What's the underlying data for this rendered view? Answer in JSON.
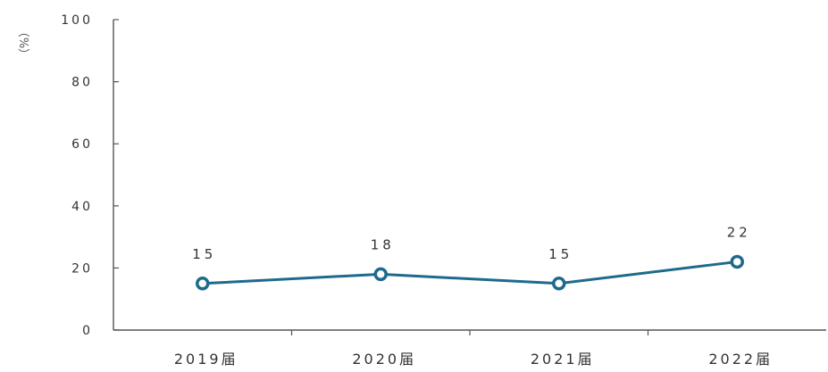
{
  "chart_data": {
    "type": "line",
    "categories": [
      "2019届",
      "2020届",
      "2021届",
      "2022届"
    ],
    "series": [
      {
        "values": [
          15,
          18,
          15,
          22
        ]
      }
    ],
    "ylabel": "（%）",
    "xlabel": "",
    "ylim": [
      0,
      100
    ],
    "yticks": [
      0,
      20,
      40,
      60,
      80,
      100
    ],
    "data_labels": [
      "15",
      "18",
      "15",
      "22"
    ],
    "grid": false,
    "line_color": "#1e6a8c"
  }
}
